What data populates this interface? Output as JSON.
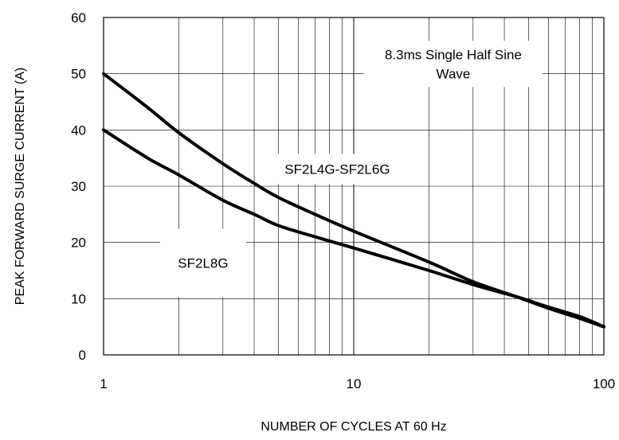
{
  "chart_data": {
    "type": "line",
    "xscale": "log",
    "xlim": [
      1,
      100
    ],
    "ylim": [
      0,
      60
    ],
    "grid": true,
    "xlabel": "NUMBER OF CYCLES AT 60 Hz",
    "ylabel": "PEAK FORWARD SURGE CURRENT (A)",
    "x_ticks": [
      "1",
      "10",
      "100"
    ],
    "y_ticks": [
      "0",
      "10",
      "20",
      "30",
      "40",
      "50",
      "60"
    ],
    "series": [
      {
        "name": "SF2L4G-SF2L6G",
        "x": [
          1,
          1.5,
          2,
          3,
          4,
          5,
          7,
          10,
          20,
          30,
          45,
          60,
          80,
          100
        ],
        "y": [
          50,
          44,
          39.5,
          34,
          30.5,
          28,
          25,
          22,
          16.5,
          13,
          10.3,
          8.3,
          6.5,
          5
        ]
      },
      {
        "name": "SF2L8G",
        "x": [
          1,
          1.5,
          2,
          3,
          4,
          5,
          7,
          10,
          20,
          30,
          45,
          60,
          80,
          100
        ],
        "y": [
          40,
          35,
          32,
          27.5,
          25,
          23,
          21,
          19,
          15,
          12.5,
          10.3,
          8.5,
          6.8,
          5
        ]
      }
    ],
    "annotations": [
      {
        "text": "8.3ms Single Half Sine",
        "x": 25,
        "y": 52.6
      },
      {
        "text": "Wave",
        "x": 25,
        "y": 49.2
      },
      {
        "text": "SF2L4G-SF2L6G",
        "x": 8.6,
        "y": 32.2
      },
      {
        "text": "SF2L8G",
        "x": 2.5,
        "y": 15.5
      }
    ]
  }
}
